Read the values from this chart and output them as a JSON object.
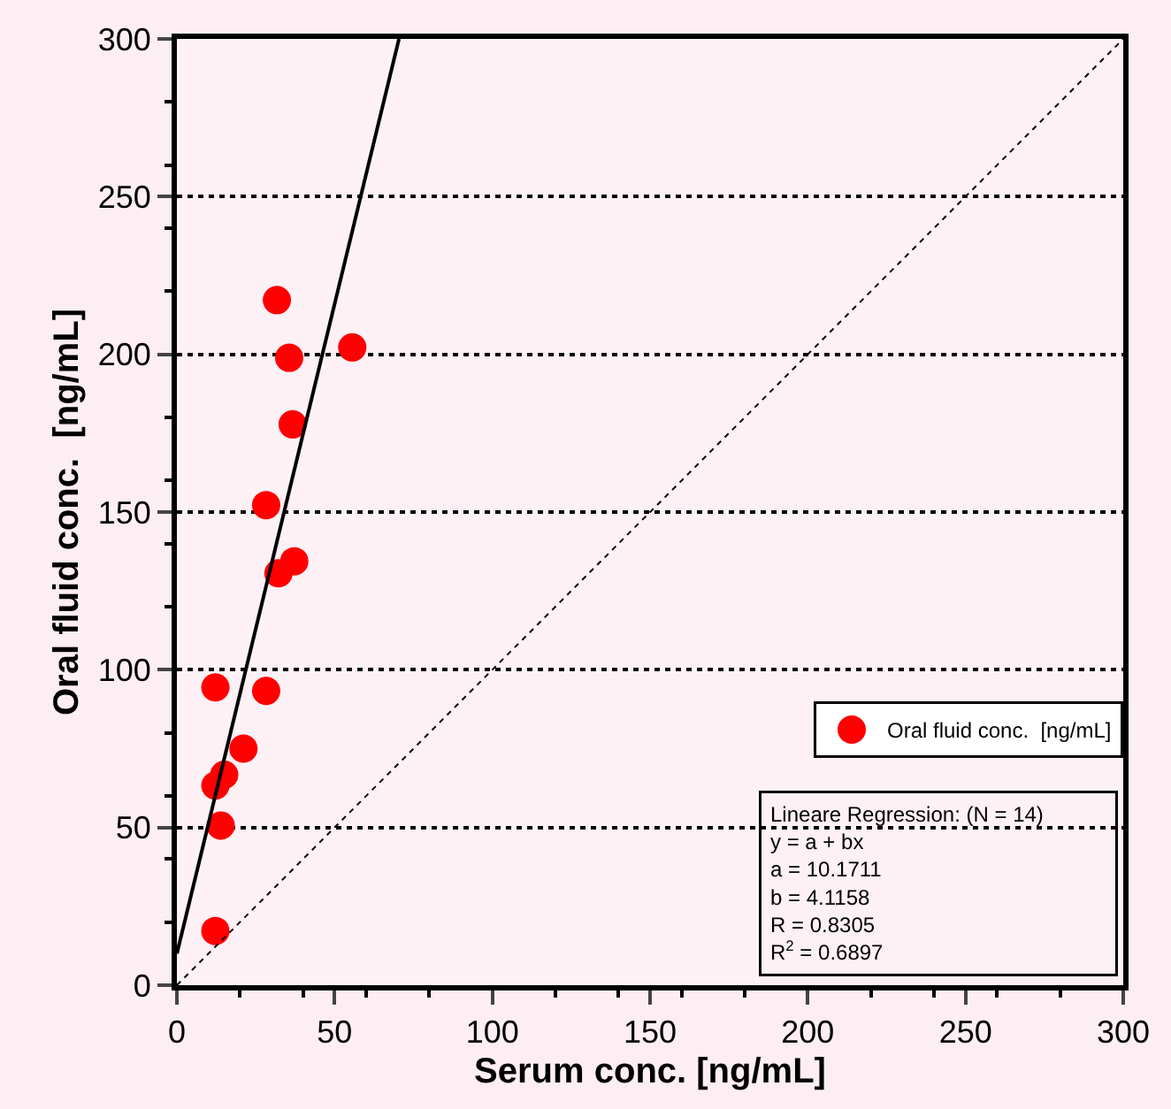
{
  "chart_data": {
    "type": "scatter",
    "xlabel": "Serum conc. [ng/mL]",
    "ylabel": "Oral fluid conc.  [ng/mL]",
    "xlim": [
      0,
      300
    ],
    "xticks": [
      0,
      50,
      100,
      150,
      200,
      250,
      300
    ],
    "ylim": [
      0,
      300
    ],
    "yticks": [
      0,
      50,
      100,
      150,
      200,
      250,
      300
    ],
    "grid": "y",
    "legend": "bottom right",
    "series": [
      {
        "name": "Oral fluid conc.  [ng/mL]",
        "color": "#ff0000",
        "marker": "circle",
        "x": [
          12.2,
          13.9,
          12.2,
          28.3,
          15,
          12.2,
          21.1,
          32.2,
          37.2,
          28.3,
          36.7,
          35.6,
          55.6,
          31.7
        ],
        "values": [
          17.2,
          50.6,
          94.4,
          93.3,
          66.7,
          63.3,
          75,
          130.6,
          134.4,
          152.2,
          177.8,
          198.9,
          202.2,
          217.2
        ]
      },
      {
        "color": "#000000",
        "type": "line",
        "line_style": "solid",
        "x": [
          0,
          70.4
        ],
        "values": [
          10,
          300
        ]
      },
      {
        "color": "#000000",
        "type": "line",
        "line_style": "dotted",
        "x": [
          0,
          300
        ],
        "values": [
          0,
          300
        ]
      }
    ],
    "annotations": [
      "Lineare Regression: (N = 14)\ny = a + bx\na = 10.1711\nb = 4.1158\nR = 0.8305\nR$^{2}$ = 0.6897"
    ]
  }
}
